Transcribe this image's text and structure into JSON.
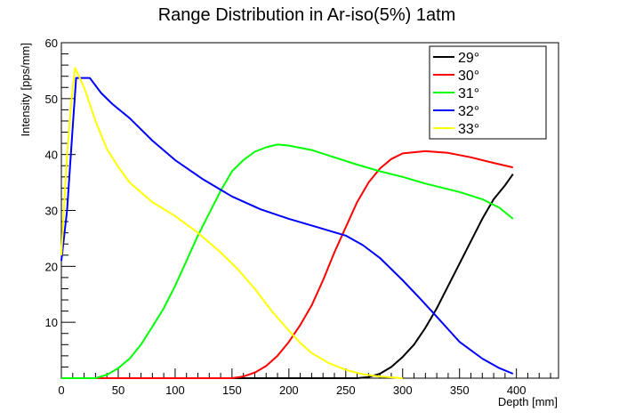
{
  "chart_data": {
    "type": "line",
    "title": "Range Distribution in Ar-iso(5%) 1atm",
    "xlabel": "Depth [mm]",
    "ylabel": "Intensity [pps/mm]",
    "xlim": [
      0,
      437
    ],
    "ylim": [
      0,
      60
    ],
    "xticks": [
      0,
      50,
      100,
      150,
      200,
      250,
      300,
      350,
      400
    ],
    "yticks": [
      10,
      20,
      30,
      40,
      50,
      60
    ],
    "grid": false,
    "legend_position": "top-right",
    "series": [
      {
        "name": "29°",
        "color": "#000000",
        "points": [
          [
            0,
            0
          ],
          [
            260,
            0
          ],
          [
            270,
            0.2
          ],
          [
            280,
            0.8
          ],
          [
            290,
            2
          ],
          [
            300,
            3.8
          ],
          [
            310,
            6
          ],
          [
            320,
            9
          ],
          [
            330,
            12.5
          ],
          [
            340,
            16.5
          ],
          [
            350,
            20.5
          ],
          [
            360,
            24.5
          ],
          [
            370,
            28.5
          ],
          [
            380,
            32
          ],
          [
            390,
            34.5
          ],
          [
            397,
            36.5
          ]
        ]
      },
      {
        "name": "30°",
        "color": "#ff0000",
        "points": [
          [
            0,
            0
          ],
          [
            150,
            0
          ],
          [
            160,
            0.3
          ],
          [
            170,
            1
          ],
          [
            180,
            2.2
          ],
          [
            190,
            4
          ],
          [
            200,
            6.5
          ],
          [
            210,
            9.5
          ],
          [
            220,
            13
          ],
          [
            230,
            17.5
          ],
          [
            240,
            22.5
          ],
          [
            250,
            27
          ],
          [
            260,
            31.5
          ],
          [
            270,
            35
          ],
          [
            280,
            37.5
          ],
          [
            290,
            39.2
          ],
          [
            300,
            40.2
          ],
          [
            320,
            40.6
          ],
          [
            340,
            40.3
          ],
          [
            360,
            39.5
          ],
          [
            380,
            38.5
          ],
          [
            397,
            37.7
          ]
        ]
      },
      {
        "name": "31°",
        "color": "#00ff00",
        "points": [
          [
            0,
            0
          ],
          [
            30,
            0
          ],
          [
            40,
            0.6
          ],
          [
            50,
            1.8
          ],
          [
            60,
            3.5
          ],
          [
            70,
            6
          ],
          [
            80,
            9.2
          ],
          [
            90,
            12.5
          ],
          [
            100,
            16.5
          ],
          [
            110,
            21
          ],
          [
            120,
            25.5
          ],
          [
            130,
            29.5
          ],
          [
            140,
            33.5
          ],
          [
            150,
            37
          ],
          [
            160,
            39
          ],
          [
            170,
            40.5
          ],
          [
            180,
            41.3
          ],
          [
            190,
            41.8
          ],
          [
            200,
            41.6
          ],
          [
            220,
            40.8
          ],
          [
            240,
            39.5
          ],
          [
            260,
            38.2
          ],
          [
            280,
            37
          ],
          [
            300,
            36
          ],
          [
            320,
            34.8
          ],
          [
            350,
            33.3
          ],
          [
            370,
            32
          ],
          [
            385,
            30.5
          ],
          [
            397,
            28.5
          ]
        ]
      },
      {
        "name": "32°",
        "color": "#0000ff",
        "points": [
          [
            0,
            21
          ],
          [
            5,
            30
          ],
          [
            10,
            45
          ],
          [
            13,
            53.7
          ],
          [
            25,
            53.7
          ],
          [
            35,
            51
          ],
          [
            45,
            49
          ],
          [
            60,
            46.5
          ],
          [
            80,
            42.5
          ],
          [
            100,
            39
          ],
          [
            125,
            35.5
          ],
          [
            150,
            32.5
          ],
          [
            175,
            30.2
          ],
          [
            200,
            28.5
          ],
          [
            225,
            27
          ],
          [
            250,
            25.5
          ],
          [
            265,
            23.8
          ],
          [
            280,
            21.5
          ],
          [
            300,
            17.5
          ],
          [
            315,
            14.3
          ],
          [
            330,
            11
          ],
          [
            350,
            6.5
          ],
          [
            370,
            3.5
          ],
          [
            385,
            1.8
          ],
          [
            397,
            0.8
          ]
        ]
      },
      {
        "name": "33°",
        "color": "#ffff00",
        "points": [
          [
            0,
            22
          ],
          [
            5,
            40
          ],
          [
            9,
            50
          ],
          [
            12,
            55.5
          ],
          [
            20,
            52
          ],
          [
            30,
            46
          ],
          [
            40,
            41
          ],
          [
            50,
            37.8
          ],
          [
            60,
            35
          ],
          [
            80,
            31.5
          ],
          [
            100,
            29
          ],
          [
            120,
            26
          ],
          [
            140,
            22.5
          ],
          [
            155,
            19.5
          ],
          [
            170,
            16
          ],
          [
            185,
            12
          ],
          [
            200,
            8.5
          ],
          [
            210,
            6.3
          ],
          [
            220,
            4.5
          ],
          [
            235,
            2.7
          ],
          [
            250,
            1.5
          ],
          [
            265,
            0.7
          ],
          [
            280,
            0.3
          ],
          [
            300,
            0
          ]
        ]
      }
    ]
  }
}
